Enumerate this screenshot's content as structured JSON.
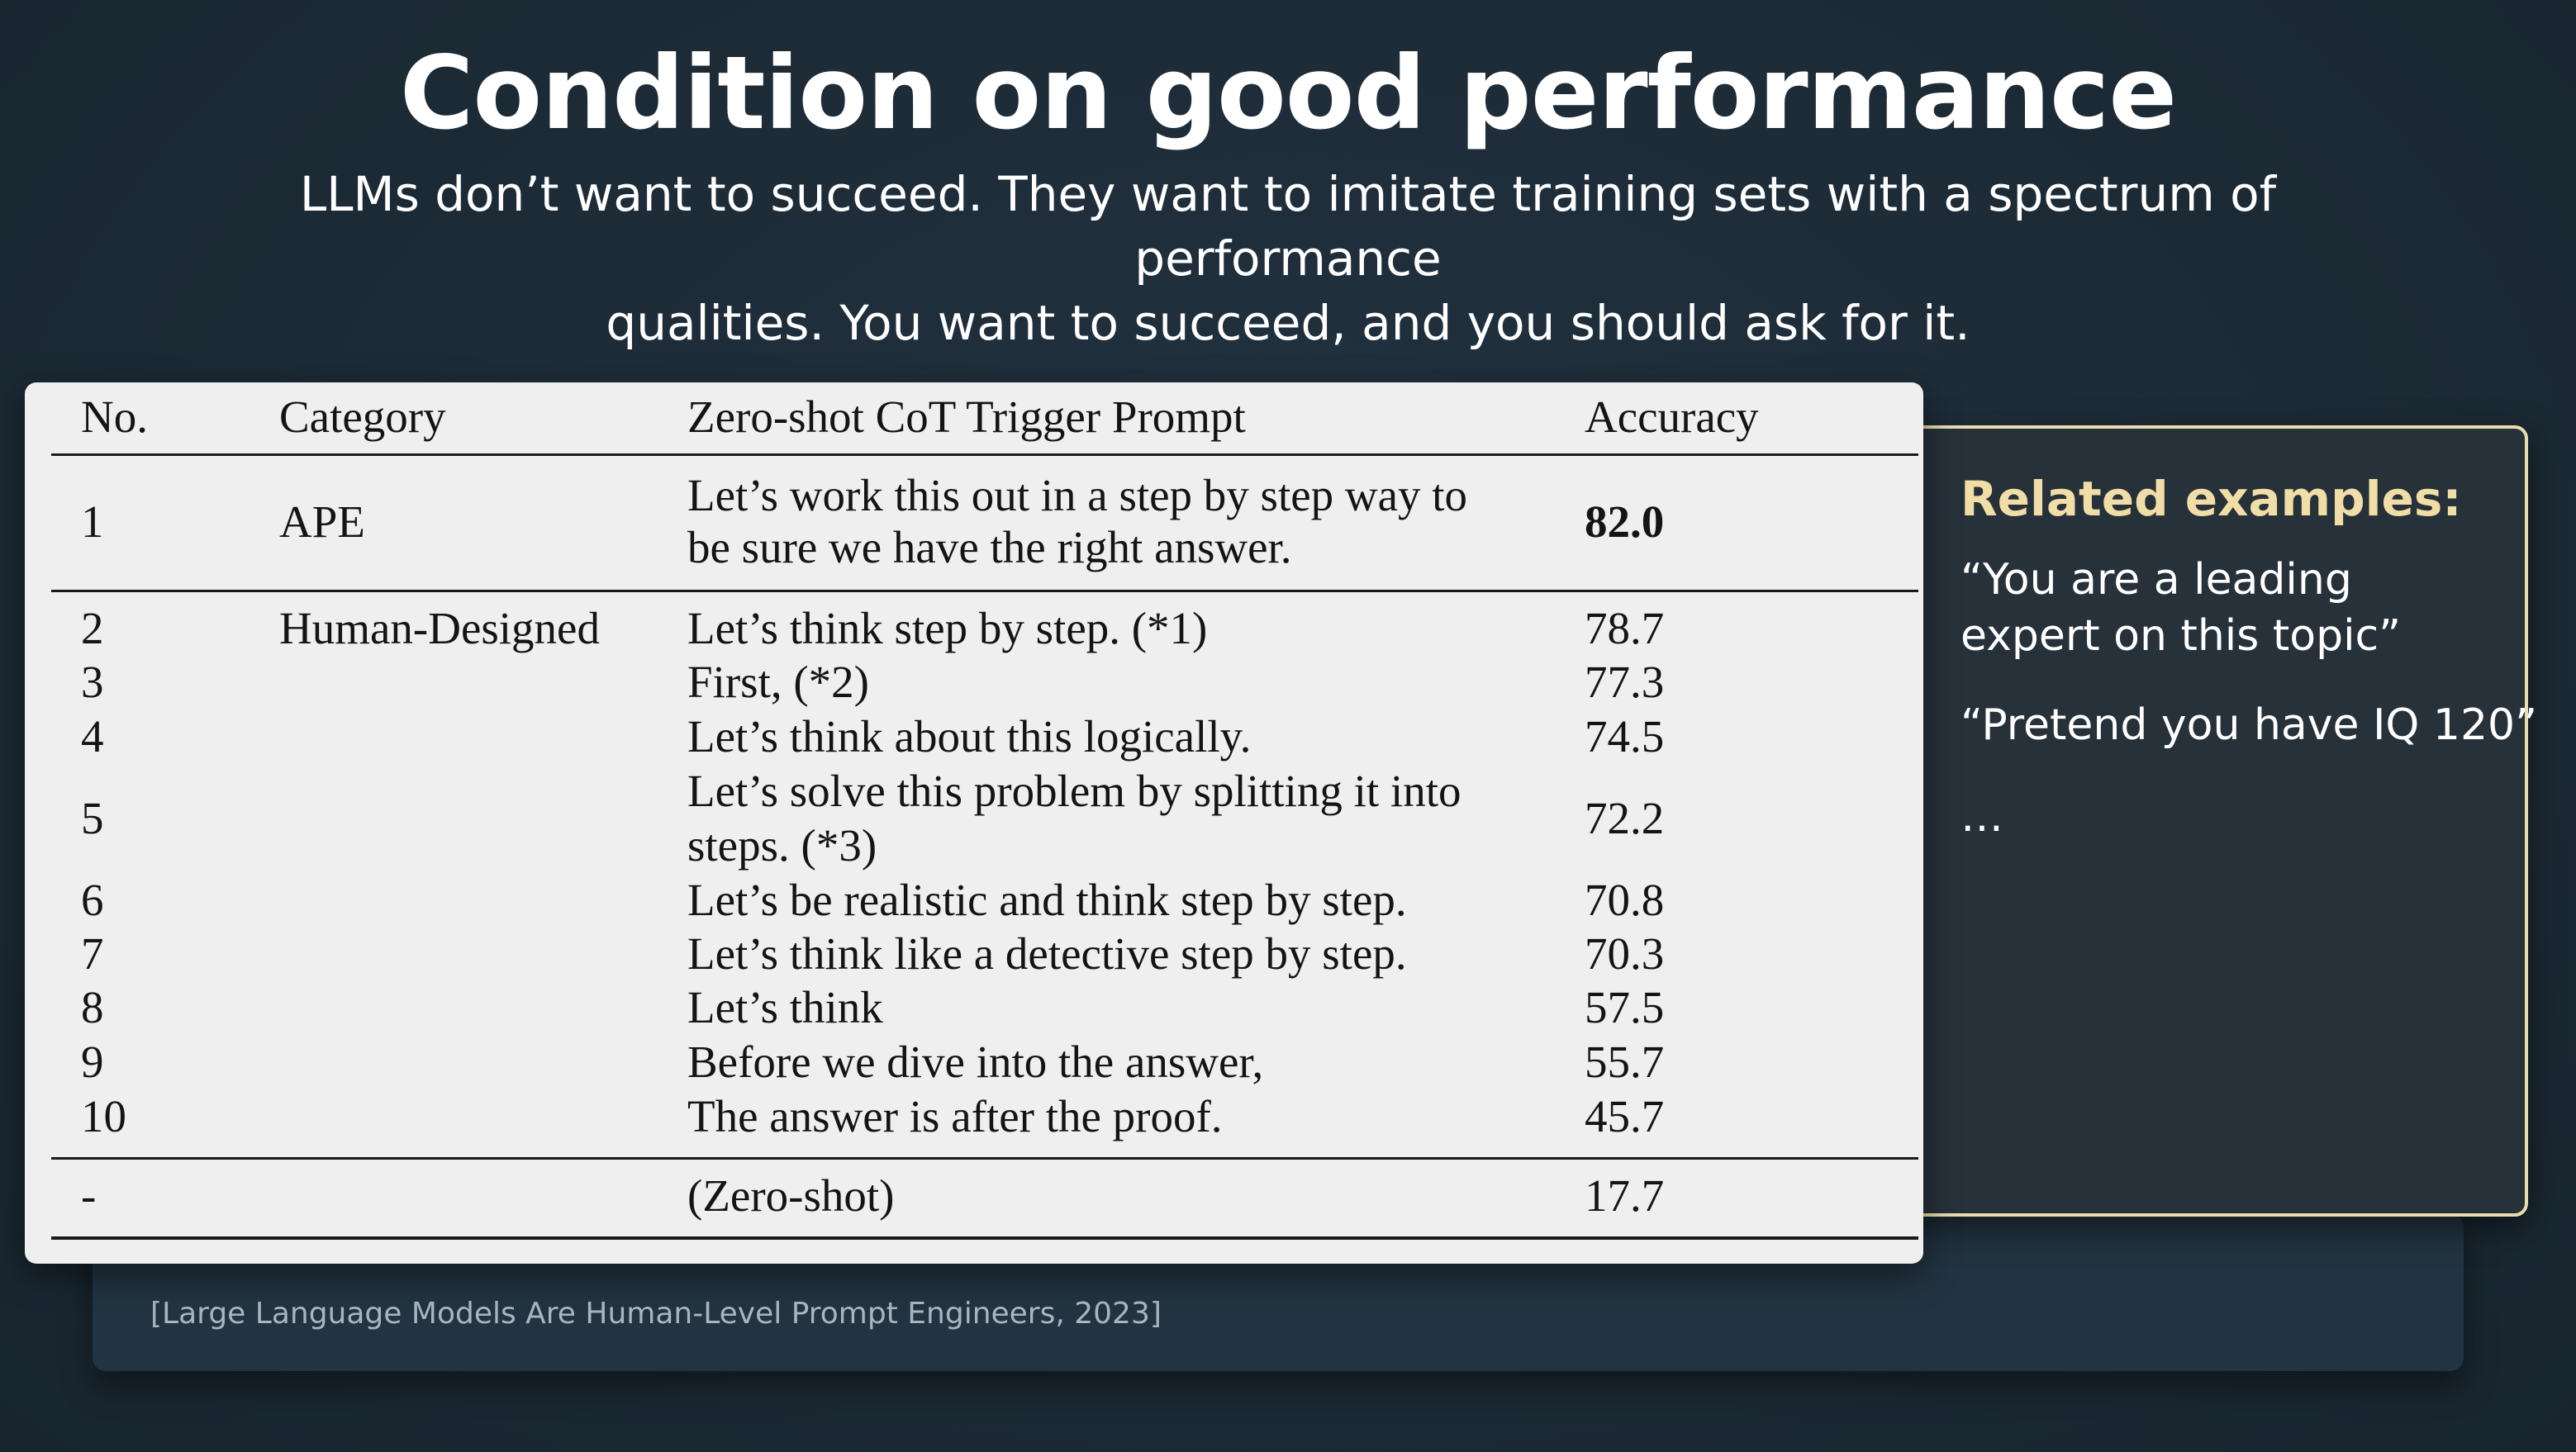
{
  "slide": {
    "title": "Condition on good performance",
    "subtitle_line1": "LLMs don’t want to succeed. They want to imitate training sets with a spectrum of performance",
    "subtitle_line2": "qualities. You want to succeed, and you should ask for it.",
    "citation": "[Large Language Models Are Human-Level Prompt Engineers, 2023]"
  },
  "table": {
    "headers": {
      "no": "No.",
      "category": "Category",
      "prompt": "Zero-shot CoT Trigger Prompt",
      "accuracy": "Accuracy"
    },
    "rows": [
      {
        "no": "1",
        "category": "APE",
        "prompt_line1": "Let’s work this out in a step by step way to",
        "prompt_line2": "be sure we have the right answer.",
        "accuracy": "82.0"
      },
      {
        "no": "2",
        "category": "Human-Designed",
        "prompt": "Let’s think step by step. (*1)",
        "accuracy": "78.7"
      },
      {
        "no": "3",
        "category": "",
        "prompt": "First, (*2)",
        "accuracy": "77.3"
      },
      {
        "no": "4",
        "category": "",
        "prompt": "Let’s think about this logically.",
        "accuracy": "74.5"
      },
      {
        "no": "5",
        "category": "",
        "prompt_line1": "Let’s solve this problem by splitting it into",
        "prompt_line2": "steps. (*3)",
        "accuracy": "72.2"
      },
      {
        "no": "6",
        "category": "",
        "prompt": "Let’s be realistic and think step by step.",
        "accuracy": "70.8"
      },
      {
        "no": "7",
        "category": "",
        "prompt": "Let’s think like a detective step by step.",
        "accuracy": "70.3"
      },
      {
        "no": "8",
        "category": "",
        "prompt": "Let’s think",
        "accuracy": "57.5"
      },
      {
        "no": "9",
        "category": "",
        "prompt": "Before we dive into the answer,",
        "accuracy": "55.7"
      },
      {
        "no": "10",
        "category": "",
        "prompt": "The answer is after the proof.",
        "accuracy": "45.7"
      },
      {
        "no": "-",
        "category": "",
        "prompt": "(Zero-shot)",
        "accuracy": "17.7"
      }
    ]
  },
  "related": {
    "heading": "Related examples:",
    "item1_line1": "“You are a leading",
    "item1_line2": "expert on this topic”",
    "item2": "“Pretend you have IQ 120”",
    "item3": "…"
  }
}
